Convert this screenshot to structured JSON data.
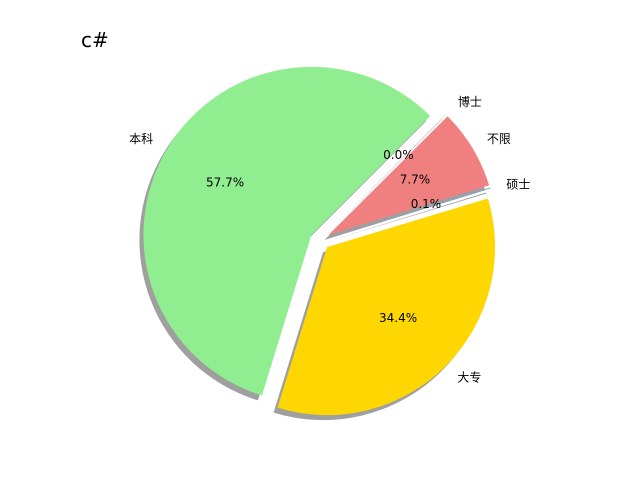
{
  "chart_data": {
    "type": "pie",
    "title": "c#",
    "slices": [
      {
        "label": "本科",
        "percent_label": "57.7%",
        "value": 57.7,
        "color": "#90EE90"
      },
      {
        "label": "大专",
        "percent_label": "34.4%",
        "value": 34.4,
        "color": "#FFD700"
      },
      {
        "label": "硕士",
        "percent_label": "0.1%",
        "value": 0.1,
        "color": "#87A3C8"
      },
      {
        "label": "不限",
        "percent_label": "7.7%",
        "value": 7.7,
        "color": "#F08080"
      },
      {
        "label": "博士",
        "percent_label": "0.0%",
        "value": 0.03,
        "color": "#C0C0C0"
      }
    ],
    "shadow": true,
    "exploded": true
  }
}
